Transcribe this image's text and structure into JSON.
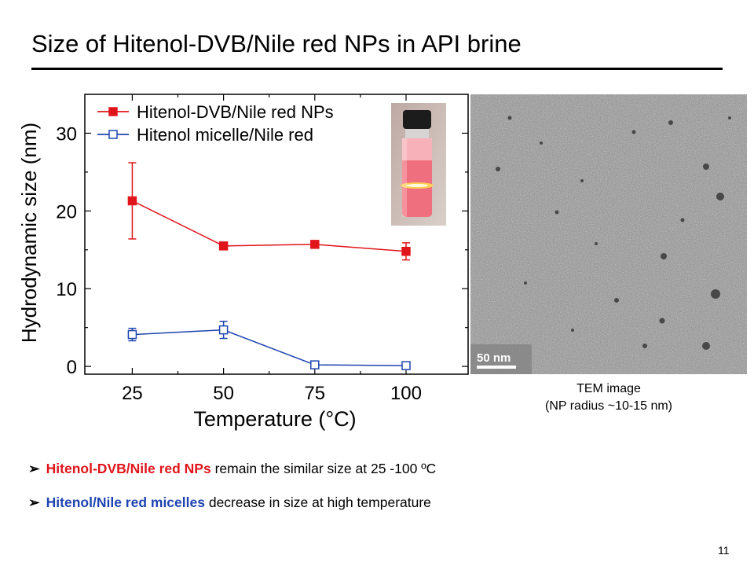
{
  "slide": {
    "title": "Size of Hitenol-DVB/Nile red NPs in API brine",
    "page_number": "11"
  },
  "chart_data": {
    "type": "line",
    "xlabel": "Temperature (°C)",
    "ylabel": "Hydrodynamic size (nm)",
    "x": [
      25,
      50,
      75,
      100
    ],
    "x_ticks": [
      "25",
      "50",
      "75",
      "100"
    ],
    "y_ticks": [
      "0",
      "10",
      "20",
      "30"
    ],
    "xlim": [
      12,
      117
    ],
    "ylim": [
      -1,
      35
    ],
    "legend_position": "top-left",
    "series": [
      {
        "name": "Hitenol-DVB/Nile red NPs",
        "marker": "filled-square",
        "color": "#e0151b",
        "values": [
          21.3,
          15.5,
          15.7,
          14.8
        ],
        "error": [
          4.9,
          0.4,
          0.4,
          1.1
        ]
      },
      {
        "name": "Hitenol micelle/Nile red",
        "marker": "open-square",
        "color": "#1f44b0",
        "values": [
          4.1,
          4.7,
          0.2,
          0.1
        ],
        "error": [
          0.8,
          1.1,
          0.2,
          0.2
        ]
      }
    ]
  },
  "tem": {
    "scale_bar_label": "50 nm",
    "caption_line1": "TEM image",
    "caption_line2": "(NP radius ~10-15 nm)"
  },
  "bullets": [
    {
      "highlight": "Hitenol-DVB/Nile red NPs",
      "text": " remain the similar size at 25 -100 ºC",
      "color": "#e0151b"
    },
    {
      "highlight": "Hitenol/Nile red micelles",
      "text": " decrease in size at high temperature",
      "color": "#1f44b0"
    }
  ]
}
